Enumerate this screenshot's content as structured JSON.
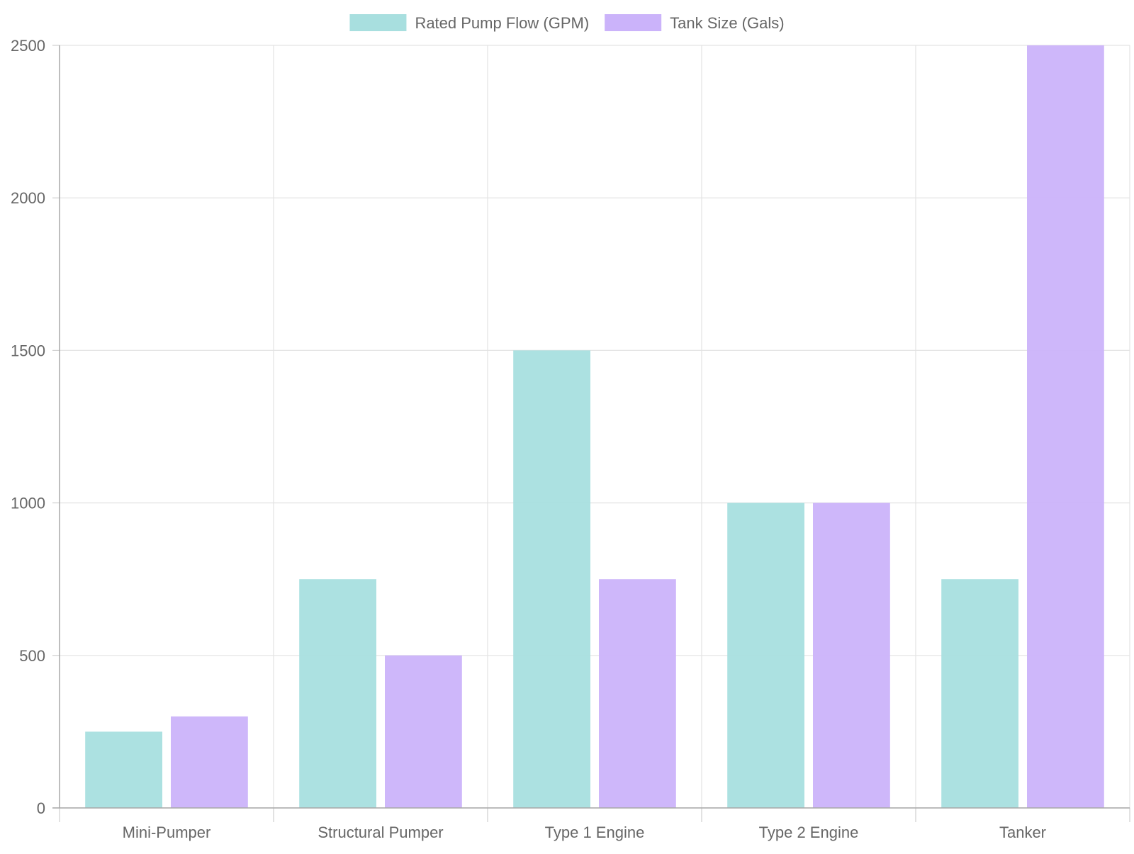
{
  "chart_data": {
    "type": "bar",
    "categories": [
      "Mini-Pumper",
      "Structural Pumper",
      "Type 1 Engine",
      "Type 2 Engine",
      "Tanker"
    ],
    "series": [
      {
        "name": "Rated Pump Flow (GPM)",
        "values": [
          250,
          750,
          1500,
          1000,
          750
        ],
        "color": "#a8dfdf"
      },
      {
        "name": "Tank Size (Gals)",
        "values": [
          300,
          500,
          750,
          1000,
          2500
        ],
        "color": "#cbb3fa"
      }
    ],
    "ylim": [
      0,
      2500
    ],
    "yticks": [
      0,
      500,
      1000,
      1500,
      2000,
      2500
    ],
    "grid": true,
    "legend_position": "top-center"
  }
}
